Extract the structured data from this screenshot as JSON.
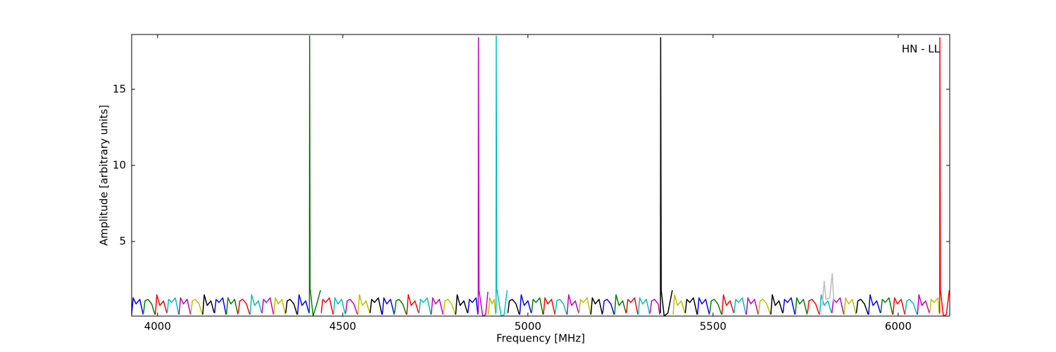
{
  "chart_data": {
    "type": "line",
    "xlabel": "Frequency [MHz]",
    "ylabel": "Amplitude [arbitrary units]",
    "annotation": "HN - LL",
    "xlim": [
      3930,
      6139
    ],
    "ylim": [
      0.1,
      18.6
    ],
    "xticks": [
      4000,
      4500,
      5000,
      5500,
      6000
    ],
    "yticks": [
      5,
      10,
      15
    ],
    "series": [
      {
        "color": "#0000ff",
        "x": [
          3930,
          3934,
          3942,
          3952,
          3961
        ],
        "values": [
          0.2,
          1.3,
          0.9,
          1.2,
          0.2
        ]
      },
      {
        "color": "#008000",
        "x": [
          3962,
          3966,
          3974,
          3984,
          3993
        ],
        "values": [
          0.3,
          1.1,
          1.2,
          0.9,
          0.2
        ]
      },
      {
        "color": "#ff0000",
        "x": [
          3994,
          3998,
          4006,
          4016,
          4025
        ],
        "values": [
          0.2,
          1.5,
          0.8,
          1.1,
          0.3
        ]
      },
      {
        "color": "#00bfbf",
        "x": [
          4026,
          4030,
          4038,
          4048,
          4057
        ],
        "values": [
          0.3,
          1.2,
          1.0,
          1.3,
          0.2
        ]
      },
      {
        "color": "#bf00bf",
        "x": [
          4058,
          4062,
          4070,
          4080,
          4089
        ],
        "values": [
          0.2,
          1.3,
          0.9,
          1.2,
          0.2
        ]
      },
      {
        "color": "#bfbf00",
        "x": [
          4090,
          4094,
          4102,
          4112,
          4121
        ],
        "values": [
          0.3,
          1.1,
          1.2,
          0.9,
          0.2
        ]
      },
      {
        "color": "#000000",
        "x": [
          4122,
          4126,
          4134,
          4144,
          4153
        ],
        "values": [
          0.2,
          1.5,
          0.8,
          1.1,
          0.3
        ]
      },
      {
        "color": "#0000ff",
        "x": [
          4154,
          4158,
          4166,
          4176,
          4185
        ],
        "values": [
          0.3,
          1.2,
          1.0,
          1.3,
          0.2
        ]
      },
      {
        "color": "#008000",
        "x": [
          4186,
          4190,
          4198,
          4208,
          4217
        ],
        "values": [
          0.2,
          1.3,
          0.9,
          1.2,
          0.2
        ]
      },
      {
        "color": "#ff0000",
        "x": [
          4218,
          4222,
          4230,
          4240,
          4249
        ],
        "values": [
          0.3,
          1.1,
          1.2,
          0.9,
          0.2
        ]
      },
      {
        "color": "#00bfbf",
        "x": [
          4250,
          4254,
          4262,
          4272,
          4281
        ],
        "values": [
          0.2,
          1.5,
          0.8,
          1.1,
          0.3
        ]
      },
      {
        "color": "#bf00bf",
        "x": [
          4282,
          4286,
          4294,
          4304,
          4313
        ],
        "values": [
          0.3,
          1.2,
          1.0,
          1.3,
          0.2
        ]
      },
      {
        "color": "#bfbf00",
        "x": [
          4314,
          4318,
          4326,
          4336,
          4345
        ],
        "values": [
          0.2,
          1.3,
          0.9,
          1.2,
          0.2
        ]
      },
      {
        "color": "#000000",
        "x": [
          4346,
          4350,
          4358,
          4368,
          4377
        ],
        "values": [
          0.3,
          1.1,
          1.2,
          0.9,
          0.2
        ]
      },
      {
        "color": "#0000ff",
        "x": [
          4378,
          4382,
          4390,
          4400,
          4409
        ],
        "values": [
          0.2,
          1.5,
          0.8,
          1.1,
          0.3
        ]
      },
      {
        "color": "#008000",
        "x": [
          4410,
          4410.5,
          4412,
          4420,
          4430,
          4440
        ],
        "values": [
          0.3,
          18.5,
          1.9,
          0.1,
          0.9,
          1.8
        ]
      },
      {
        "color": "#ff0000",
        "x": [
          4442,
          4446,
          4454,
          4464,
          4474
        ],
        "values": [
          0.3,
          1.2,
          1.0,
          1.3,
          0.2
        ]
      },
      {
        "color": "#00bfbf",
        "x": [
          4475,
          4479,
          4487,
          4497,
          4507
        ],
        "values": [
          0.2,
          1.3,
          0.9,
          1.2,
          0.2
        ]
      },
      {
        "color": "#bf00bf",
        "x": [
          4508,
          4512,
          4520,
          4530,
          4540
        ],
        "values": [
          0.3,
          1.1,
          1.2,
          0.9,
          0.2
        ]
      },
      {
        "color": "#bfbf00",
        "x": [
          4541,
          4545,
          4553,
          4563,
          4573
        ],
        "values": [
          0.2,
          1.5,
          0.8,
          1.1,
          0.3
        ]
      },
      {
        "color": "#000000",
        "x": [
          4574,
          4578,
          4586,
          4596,
          4606
        ],
        "values": [
          0.3,
          1.2,
          1.0,
          1.3,
          0.2
        ]
      },
      {
        "color": "#0000ff",
        "x": [
          4607,
          4611,
          4619,
          4629,
          4639
        ],
        "values": [
          0.2,
          1.3,
          0.9,
          1.2,
          0.2
        ]
      },
      {
        "color": "#008000",
        "x": [
          4640,
          4644,
          4652,
          4662,
          4672
        ],
        "values": [
          0.3,
          1.1,
          1.2,
          0.9,
          0.2
        ]
      },
      {
        "color": "#ff0000",
        "x": [
          4673,
          4677,
          4685,
          4695,
          4705
        ],
        "values": [
          0.2,
          1.5,
          0.8,
          1.1,
          0.3
        ]
      },
      {
        "color": "#00bfbf",
        "x": [
          4706,
          4710,
          4718,
          4728,
          4738
        ],
        "values": [
          0.3,
          1.2,
          1.0,
          1.3,
          0.2
        ]
      },
      {
        "color": "#bf00bf",
        "x": [
          4739,
          4743,
          4751,
          4761,
          4771
        ],
        "values": [
          0.2,
          1.3,
          0.9,
          1.2,
          0.2
        ]
      },
      {
        "color": "#bfbf00",
        "x": [
          4772,
          4776,
          4784,
          4794,
          4804
        ],
        "values": [
          0.3,
          1.1,
          1.2,
          0.9,
          0.2
        ]
      },
      {
        "color": "#000000",
        "x": [
          4805,
          4809,
          4817,
          4827,
          4837
        ],
        "values": [
          0.2,
          1.5,
          0.8,
          1.1,
          0.3
        ]
      },
      {
        "color": "#0000ff",
        "x": [
          4838,
          4842,
          4850,
          4860,
          4865
        ],
        "values": [
          0.3,
          1.2,
          1.0,
          1.3,
          0.2
        ]
      },
      {
        "color": "#bf00bf",
        "x": [
          4866,
          4866.5,
          4868,
          4878,
          4886,
          4892
        ],
        "values": [
          0.3,
          18.4,
          1.8,
          0.1,
          0.2,
          1.7
        ]
      },
      {
        "color": "#bfbf00",
        "x": [
          4893,
          4897,
          4903,
          4909,
          4913
        ],
        "values": [
          0.2,
          1.3,
          0.9,
          1.2,
          0.2
        ]
      },
      {
        "color": "#00bfbf",
        "x": [
          4914,
          4914.5,
          4916,
          4928,
          4936,
          4944
        ],
        "values": [
          0.3,
          18.5,
          1.9,
          0.1,
          0.2,
          1.8
        ]
      },
      {
        "color": "#000000",
        "x": [
          4946,
          4950,
          4958,
          4968,
          4977
        ],
        "values": [
          0.3,
          1.1,
          1.2,
          0.9,
          0.2
        ]
      },
      {
        "color": "#0000ff",
        "x": [
          4978,
          4982,
          4990,
          5000,
          5009
        ],
        "values": [
          0.2,
          1.5,
          0.8,
          1.1,
          0.3
        ]
      },
      {
        "color": "#008000",
        "x": [
          5010,
          5014,
          5022,
          5032,
          5041
        ],
        "values": [
          0.3,
          1.2,
          1.0,
          1.3,
          0.2
        ]
      },
      {
        "color": "#ff0000",
        "x": [
          5042,
          5046,
          5054,
          5064,
          5073
        ],
        "values": [
          0.2,
          1.3,
          0.9,
          1.2,
          0.2
        ]
      },
      {
        "color": "#00bfbf",
        "x": [
          5074,
          5078,
          5086,
          5096,
          5105
        ],
        "values": [
          0.3,
          1.1,
          1.2,
          0.9,
          0.2
        ]
      },
      {
        "color": "#bf00bf",
        "x": [
          5106,
          5110,
          5118,
          5128,
          5137
        ],
        "values": [
          0.2,
          1.5,
          0.8,
          1.1,
          0.3
        ]
      },
      {
        "color": "#bfbf00",
        "x": [
          5138,
          5142,
          5150,
          5160,
          5169
        ],
        "values": [
          0.3,
          1.2,
          1.0,
          1.3,
          0.2
        ]
      },
      {
        "color": "#000000",
        "x": [
          5170,
          5174,
          5182,
          5192,
          5201
        ],
        "values": [
          0.2,
          1.3,
          0.9,
          1.2,
          0.2
        ]
      },
      {
        "color": "#0000ff",
        "x": [
          5202,
          5206,
          5214,
          5224,
          5233
        ],
        "values": [
          0.3,
          1.1,
          1.2,
          0.9,
          0.2
        ]
      },
      {
        "color": "#008000",
        "x": [
          5234,
          5238,
          5246,
          5256,
          5265
        ],
        "values": [
          0.2,
          1.5,
          0.8,
          1.1,
          0.3
        ]
      },
      {
        "color": "#ff0000",
        "x": [
          5266,
          5270,
          5278,
          5288,
          5297
        ],
        "values": [
          0.3,
          1.2,
          1.0,
          1.3,
          0.2
        ]
      },
      {
        "color": "#00bfbf",
        "x": [
          5298,
          5302,
          5310,
          5320,
          5329
        ],
        "values": [
          0.2,
          1.3,
          0.9,
          1.2,
          0.2
        ]
      },
      {
        "color": "#bf00bf",
        "x": [
          5330,
          5334,
          5342,
          5352,
          5356
        ],
        "values": [
          0.3,
          1.1,
          1.2,
          0.9,
          0.2
        ]
      },
      {
        "color": "#000000",
        "x": [
          5358,
          5358.5,
          5360,
          5368,
          5378,
          5390
        ],
        "values": [
          0.3,
          18.4,
          1.8,
          0.1,
          0.3,
          1.8
        ]
      },
      {
        "color": "#bfbf00",
        "x": [
          5392,
          5396,
          5404,
          5414,
          5424
        ],
        "values": [
          0.2,
          1.5,
          0.8,
          1.1,
          0.3
        ]
      },
      {
        "color": "#000000",
        "x": [
          5425,
          5429,
          5437,
          5447,
          5457
        ],
        "values": [
          0.3,
          1.2,
          1.0,
          1.3,
          0.2
        ]
      },
      {
        "color": "#0000ff",
        "x": [
          5458,
          5462,
          5470,
          5480,
          5490
        ],
        "values": [
          0.2,
          1.3,
          0.9,
          1.2,
          0.2
        ]
      },
      {
        "color": "#008000",
        "x": [
          5491,
          5495,
          5503,
          5513,
          5523
        ],
        "values": [
          0.3,
          1.1,
          1.2,
          0.9,
          0.2
        ]
      },
      {
        "color": "#ff0000",
        "x": [
          5524,
          5528,
          5536,
          5546,
          5556
        ],
        "values": [
          0.2,
          1.5,
          0.8,
          1.1,
          0.3
        ]
      },
      {
        "color": "#00bfbf",
        "x": [
          5557,
          5561,
          5569,
          5579,
          5589
        ],
        "values": [
          0.3,
          1.2,
          1.0,
          1.3,
          0.2
        ]
      },
      {
        "color": "#bf00bf",
        "x": [
          5590,
          5594,
          5602,
          5612,
          5622
        ],
        "values": [
          0.2,
          1.3,
          0.9,
          1.2,
          0.2
        ]
      },
      {
        "color": "#bfbf00",
        "x": [
          5623,
          5627,
          5635,
          5645,
          5655
        ],
        "values": [
          0.3,
          1.1,
          1.2,
          0.9,
          0.2
        ]
      },
      {
        "color": "#000000",
        "x": [
          5656,
          5660,
          5668,
          5678,
          5688
        ],
        "values": [
          0.2,
          1.5,
          0.8,
          1.1,
          0.3
        ]
      },
      {
        "color": "#0000ff",
        "x": [
          5689,
          5693,
          5701,
          5711,
          5721
        ],
        "values": [
          0.3,
          1.2,
          1.0,
          1.3,
          0.2
        ]
      },
      {
        "color": "#008000",
        "x": [
          5722,
          5726,
          5734,
          5744,
          5754
        ],
        "values": [
          0.2,
          1.3,
          0.9,
          1.2,
          0.2
        ]
      },
      {
        "color": "#ff0000",
        "x": [
          5755,
          5759,
          5767,
          5777,
          5787
        ],
        "values": [
          0.3,
          1.1,
          1.2,
          0.9,
          0.2
        ]
      },
      {
        "color": "#00bfbf",
        "x": [
          5788,
          5792,
          5800,
          5810,
          5820
        ],
        "values": [
          0.2,
          1.5,
          0.8,
          1.1,
          0.3
        ]
      },
      {
        "color": "#bf00bf",
        "x": [
          5821,
          5825,
          5833,
          5843,
          5853
        ],
        "values": [
          0.3,
          1.2,
          1.0,
          1.3,
          0.2
        ]
      },
      {
        "color": "#bfbf00",
        "x": [
          5854,
          5858,
          5866,
          5876,
          5886
        ],
        "values": [
          0.2,
          1.3,
          0.9,
          1.2,
          0.2
        ]
      },
      {
        "color": "#000000",
        "x": [
          5887,
          5891,
          5899,
          5909,
          5919
        ],
        "values": [
          0.3,
          1.1,
          1.2,
          0.9,
          0.2
        ]
      },
      {
        "color": "#0000ff",
        "x": [
          5920,
          5924,
          5932,
          5942,
          5952
        ],
        "values": [
          0.2,
          1.5,
          0.8,
          1.1,
          0.3
        ]
      },
      {
        "color": "#008000",
        "x": [
          5953,
          5957,
          5965,
          5975,
          5985
        ],
        "values": [
          0.3,
          1.2,
          1.0,
          1.3,
          0.2
        ]
      },
      {
        "color": "#ff0000",
        "x": [
          5986,
          5990,
          5998,
          6008,
          6018
        ],
        "values": [
          0.2,
          1.3,
          0.9,
          1.2,
          0.2
        ]
      },
      {
        "color": "#00bfbf",
        "x": [
          6019,
          6023,
          6031,
          6041,
          6051
        ],
        "values": [
          0.3,
          1.1,
          1.2,
          0.9,
          0.2
        ]
      },
      {
        "color": "#bf00bf",
        "x": [
          6052,
          6056,
          6064,
          6074,
          6084
        ],
        "values": [
          0.2,
          1.5,
          0.8,
          1.1,
          0.3
        ]
      },
      {
        "color": "#bfbf00",
        "x": [
          6085,
          6089,
          6097,
          6107,
          6111
        ],
        "values": [
          0.3,
          1.2,
          1.0,
          1.3,
          0.2
        ]
      },
      {
        "color": "#ff0000",
        "x": [
          6112,
          6112.5,
          6114,
          6122,
          6130,
          6138
        ],
        "values": [
          0.3,
          18.4,
          1.8,
          0.1,
          0.2,
          1.8
        ]
      },
      {
        "color": "#bbbbbb",
        "x": [
          5795,
          5800,
          5805,
          5815,
          5822,
          5826
        ],
        "values": [
          0.8,
          2.4,
          1.2,
          1.3,
          2.9,
          1.0
        ]
      }
    ]
  }
}
